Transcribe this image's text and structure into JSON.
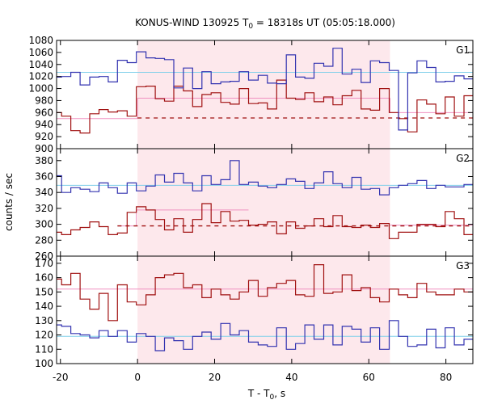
{
  "chart_data": {
    "type": "line",
    "title_main": "KONUS-WIND 130925 T",
    "title_sub": "0",
    "title_rest": " = 18318s UT (05:05:18.000)",
    "xlabel_main": "T - T",
    "xlabel_sub": "0",
    "xlabel_rest": ", s",
    "ylabel": "counts / sec",
    "xlim": [
      -21,
      87
    ],
    "x_ticks": [
      -20,
      0,
      20,
      40,
      60,
      80
    ],
    "shaded_interval": [
      0,
      65.5
    ],
    "colors": {
      "blue": "#3333b0",
      "red": "#a01010",
      "cyan": "#7fcfea",
      "pink": "#f090c0",
      "shade": "#fde8ec"
    },
    "panels": [
      {
        "label": "G1",
        "ylim": [
          900,
          1080
        ],
        "y_ticks": [
          900,
          920,
          940,
          960,
          980,
          1000,
          1020,
          1040,
          1060,
          1080
        ],
        "blue_level": 1027,
        "blue_edges": [
          -22,
          -19.7,
          -17.3,
          -14.9,
          -12.4,
          -10.0,
          -7.6,
          -5.2,
          -2.7,
          -0.3,
          2.2,
          4.6,
          7.0,
          9.4,
          11.9,
          14.3,
          16.7,
          19.1,
          21.6,
          24.0,
          26.4,
          28.8,
          31.3,
          33.7,
          36.1,
          38.6,
          41.0,
          43.4,
          45.8,
          48.3,
          50.7,
          53.1,
          55.6,
          58.0,
          60.4,
          62.8,
          65.3,
          67.7,
          70.1,
          72.5,
          75.0,
          77.4,
          79.8,
          82.2,
          84.7,
          87
        ],
        "blue_values": [
          1019,
          1020,
          1027,
          1006,
          1019,
          1020,
          1011,
          1047,
          1043,
          1061,
          1051,
          1050,
          1048,
          1001,
          1034,
          1000,
          1028,
          1008,
          1011,
          1012,
          1028,
          1014,
          1022,
          1009,
          1008,
          1056,
          1019,
          1017,
          1042,
          1037,
          1067,
          1024,
          1032,
          1010,
          1046,
          1043,
          1030,
          931,
          1026,
          1046,
          1035,
          1011,
          1012,
          1021,
          1016
        ],
        "red_edges": [
          -22,
          -19.7,
          -17.3,
          -14.9,
          -12.4,
          -10.0,
          -7.6,
          -5.2,
          -2.7,
          -0.3,
          2.2,
          4.6,
          7.0,
          9.4,
          11.9,
          14.3,
          16.7,
          19.1,
          21.6,
          24.0,
          26.4,
          28.8,
          31.3,
          33.7,
          36.1,
          38.6,
          41.0,
          43.4,
          45.8,
          48.3,
          50.7,
          53.1,
          55.6,
          58.0,
          60.4,
          62.8,
          65.3,
          67.7,
          70.1,
          72.5,
          75.0,
          77.4,
          79.8,
          82.2,
          84.7,
          87
        ],
        "red_values": [
          960,
          954,
          930,
          926,
          958,
          965,
          961,
          963,
          954,
          1003,
          1004,
          983,
          979,
          1004,
          996,
          970,
          990,
          993,
          977,
          974,
          1000,
          975,
          976,
          966,
          1014,
          984,
          982,
          993,
          978,
          986,
          973,
          988,
          997,
          966,
          964,
          1000,
          960,
          950,
          928,
          981,
          974,
          958,
          986,
          954,
          988
        ],
        "pink_segments": [
          {
            "x": [
              -22,
              0
            ],
            "y": 950
          },
          {
            "x": [
              0,
              65.5
            ],
            "y": 984
          },
          {
            "x": [
              65.5,
              87
            ],
            "y": 960
          }
        ],
        "dashed_level": 951,
        "dashed_range": [
          0,
          87
        ]
      },
      {
        "label": "G2",
        "ylim": [
          260,
          395
        ],
        "y_ticks": [
          260,
          280,
          300,
          320,
          340,
          360,
          380
        ],
        "blue_level": 349,
        "blue_edges": [
          -22,
          -19.7,
          -17.3,
          -14.9,
          -12.4,
          -10.0,
          -7.6,
          -5.2,
          -2.7,
          -0.3,
          2.2,
          4.6,
          7.0,
          9.4,
          11.9,
          14.3,
          16.7,
          19.1,
          21.6,
          24.0,
          26.4,
          28.8,
          31.3,
          33.7,
          36.1,
          38.6,
          41.0,
          43.4,
          45.8,
          48.3,
          50.7,
          53.1,
          55.6,
          58.0,
          60.4,
          62.8,
          65.3,
          67.7,
          70.1,
          72.5,
          75.0,
          77.4,
          79.8,
          82.2,
          84.7,
          87
        ],
        "blue_values": [
          361,
          340,
          346,
          344,
          341,
          352,
          346,
          339,
          352,
          342,
          348,
          362,
          353,
          364,
          352,
          342,
          361,
          350,
          356,
          380,
          350,
          353,
          348,
          346,
          350,
          357,
          354,
          345,
          352,
          366,
          351,
          346,
          359,
          344,
          345,
          337,
          346,
          349,
          351,
          355,
          345,
          349,
          347,
          347,
          350
        ],
        "red_edges": [
          -22,
          -19.7,
          -17.3,
          -14.9,
          -12.4,
          -10.0,
          -7.6,
          -5.2,
          -2.7,
          -0.3,
          2.2,
          4.6,
          7.0,
          9.4,
          11.9,
          14.3,
          16.7,
          19.1,
          21.6,
          24.0,
          26.4,
          28.8,
          31.3,
          33.7,
          36.1,
          38.6,
          41.0,
          43.4,
          45.8,
          48.3,
          50.7,
          53.1,
          55.6,
          58.0,
          60.4,
          62.8,
          65.3,
          67.7,
          70.1,
          72.5,
          75.0,
          77.4,
          79.8,
          82.2,
          84.7,
          87
        ],
        "red_values": [
          290,
          287,
          293,
          296,
          303,
          297,
          287,
          289,
          315,
          322,
          318,
          306,
          293,
          307,
          290,
          306,
          326,
          302,
          316,
          304,
          305,
          299,
          300,
          303,
          288,
          303,
          295,
          298,
          307,
          297,
          311,
          297,
          296,
          299,
          296,
          301,
          282,
          290,
          290,
          300,
          300,
          297,
          316,
          307,
          287
        ],
        "pink_segments": [
          {
            "x": [
              -5.2,
              -0.3
            ],
            "y": 298
          },
          {
            "x": [
              -0.3,
              11.9
            ],
            "y": 318
          },
          {
            "x": [
              11.9,
              28.8
            ],
            "y": 318
          },
          {
            "x": [
              65.5,
              87
            ],
            "y": 299
          }
        ],
        "dashed_level": 298,
        "dashed_range": [
          -5.2,
          87
        ]
      },
      {
        "label": "G3",
        "ylim": [
          100,
          175
        ],
        "y_ticks": [
          100,
          110,
          120,
          130,
          140,
          150,
          160,
          170
        ],
        "blue_level": 119,
        "pink_level": 152,
        "blue_edges": [
          -22,
          -19.7,
          -17.3,
          -14.9,
          -12.4,
          -10.0,
          -7.6,
          -5.2,
          -2.7,
          -0.3,
          2.2,
          4.6,
          7.0,
          9.4,
          11.9,
          14.3,
          16.7,
          19.1,
          21.6,
          24.0,
          26.4,
          28.8,
          31.3,
          33.7,
          36.1,
          38.6,
          41.0,
          43.4,
          45.8,
          48.3,
          50.7,
          53.1,
          55.6,
          58.0,
          60.4,
          62.8,
          65.3,
          67.7,
          70.1,
          72.5,
          75.0,
          77.4,
          79.8,
          82.2,
          84.7,
          87
        ],
        "blue_values": [
          127,
          126,
          121,
          120,
          118,
          123,
          119,
          123,
          115,
          121,
          119,
          109,
          118,
          116,
          110,
          119,
          122,
          117,
          128,
          120,
          123,
          115,
          113,
          112,
          125,
          110,
          114,
          127,
          117,
          127,
          113,
          126,
          124,
          115,
          125,
          110,
          130,
          119,
          112,
          113,
          124,
          111,
          125,
          113,
          117
        ],
        "red_edges": [
          -22,
          -19.7,
          -17.3,
          -14.9,
          -12.4,
          -10.0,
          -7.6,
          -5.2,
          -2.7,
          -0.3,
          2.2,
          4.6,
          7.0,
          9.4,
          11.9,
          14.3,
          16.7,
          19.1,
          21.6,
          24.0,
          26.4,
          28.8,
          31.3,
          33.7,
          36.1,
          38.6,
          41.0,
          43.4,
          45.8,
          48.3,
          50.7,
          53.1,
          55.6,
          58.0,
          60.4,
          62.8,
          65.3,
          67.7,
          70.1,
          72.5,
          75.0,
          77.4,
          79.8,
          82.2,
          84.7,
          87
        ],
        "red_values": [
          159,
          155,
          163,
          145,
          138,
          149,
          130,
          155,
          143,
          141,
          148,
          160,
          162,
          163,
          153,
          155,
          146,
          152,
          148,
          145,
          150,
          158,
          147,
          153,
          156,
          158,
          148,
          147,
          169,
          149,
          150,
          162,
          151,
          153,
          146,
          143,
          152,
          148,
          146,
          156,
          150,
          148,
          148,
          152,
          150
        ]
      }
    ]
  }
}
